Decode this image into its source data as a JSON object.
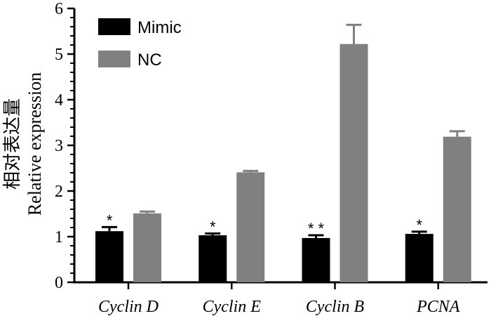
{
  "chart_data": {
    "type": "bar",
    "categories": [
      "Cyclin D",
      "Cyclin E",
      "Cyclin B",
      "PCNA"
    ],
    "series": [
      {
        "name": "Mimic",
        "color": "#000000",
        "values": [
          1.12,
          1.03,
          0.97,
          1.06
        ],
        "errors": [
          0.09,
          0.04,
          0.06,
          0.05
        ]
      },
      {
        "name": "NC",
        "color": "#808080",
        "values": [
          1.51,
          2.41,
          5.22,
          3.19
        ],
        "errors": [
          0.04,
          0.03,
          0.42,
          0.12
        ]
      }
    ],
    "annotations": [
      "*",
      "*",
      "* *",
      "*"
    ],
    "ylabel_cn": "相对表达量",
    "ylabel": "Relative expression",
    "ylim": [
      0,
      6
    ],
    "yticks": [
      0,
      1,
      2,
      3,
      4,
      5,
      6
    ],
    "grid": false,
    "legend_position": "top-left"
  }
}
